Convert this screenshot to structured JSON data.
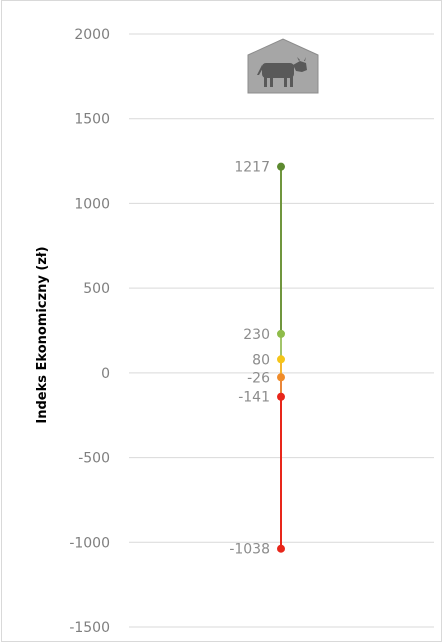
{
  "chart_data": {
    "type": "line",
    "title": "",
    "xlabel": "",
    "ylabel": "Indeks Ekonomiczny (zł)",
    "ylim": [
      -1500,
      2000
    ],
    "yticks": [
      2000,
      1500,
      1000,
      500,
      0,
      -500,
      -1000,
      -1500
    ],
    "grid": true,
    "icon": "cow-barn-icon",
    "segments": [
      {
        "from": 230,
        "to": 1217,
        "color": "#70963e"
      },
      {
        "from": 80,
        "to": 230,
        "color": "#a2c46a"
      },
      {
        "from": -26,
        "to": 80,
        "color": "#f2b632"
      },
      {
        "from": -141,
        "to": -26,
        "color": "#e9863a"
      },
      {
        "from": -1038,
        "to": -141,
        "color": "#e8261a"
      }
    ],
    "points": [
      {
        "label": "1217",
        "value": 1217,
        "color": "#5d8a30"
      },
      {
        "label": "230",
        "value": 230,
        "color": "#8fbc4a"
      },
      {
        "label": "80",
        "value": 80,
        "color": "#f5c518"
      },
      {
        "label": "-26",
        "value": -26,
        "color": "#f08c2a"
      },
      {
        "label": "-141",
        "value": -141,
        "color": "#e8261a"
      },
      {
        "label": "-1038",
        "value": -1038,
        "color": "#e8261a"
      }
    ]
  }
}
